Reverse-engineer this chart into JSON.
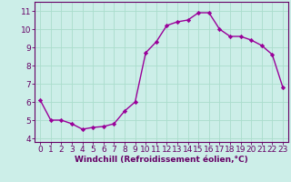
{
  "x": [
    0,
    1,
    2,
    3,
    4,
    5,
    6,
    7,
    8,
    9,
    10,
    11,
    12,
    13,
    14,
    15,
    16,
    17,
    18,
    19,
    20,
    21,
    22,
    23
  ],
  "y": [
    6.1,
    5.0,
    5.0,
    4.8,
    4.5,
    4.6,
    4.65,
    4.8,
    5.5,
    6.0,
    8.7,
    9.3,
    10.2,
    10.4,
    10.5,
    10.9,
    10.9,
    10.0,
    9.6,
    9.6,
    9.4,
    9.1,
    8.6,
    6.8
  ],
  "line_color": "#990099",
  "marker": "D",
  "markersize": 2.2,
  "linewidth": 1.0,
  "bg_color": "#cceee8",
  "grid_color": "#aaddcc",
  "xlabel": "Windchill (Refroidissement éolien,°C)",
  "xlabel_fontsize": 6.5,
  "yticks": [
    4,
    5,
    6,
    7,
    8,
    9,
    10,
    11
  ],
  "xticks": [
    0,
    1,
    2,
    3,
    4,
    5,
    6,
    7,
    8,
    9,
    10,
    11,
    12,
    13,
    14,
    15,
    16,
    17,
    18,
    19,
    20,
    21,
    22,
    23
  ],
  "ylim": [
    3.8,
    11.5
  ],
  "xlim": [
    -0.5,
    23.5
  ],
  "tick_fontsize": 6.5,
  "axis_color": "#660066",
  "label_color": "#660066"
}
